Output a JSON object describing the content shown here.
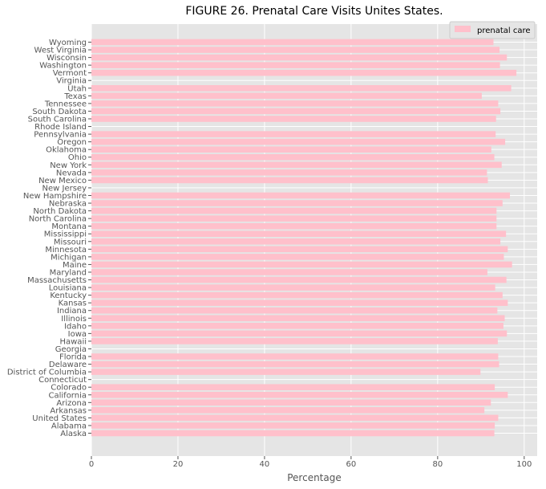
{
  "chart_data": {
    "type": "bar",
    "orientation": "horizontal",
    "title": "FIGURE 26. Prenatal Care Visits Unites States.",
    "xlabel": "Percentage",
    "ylabel": "",
    "xlim": [
      0,
      103
    ],
    "xticks": [
      0,
      20,
      40,
      60,
      80,
      100
    ],
    "grid": true,
    "legend_position": "top-right",
    "bar_color": "#ffc0cb",
    "background_color": "#e5e5e5",
    "grid_color": "#ffffff",
    "categories": [
      "Alaska",
      "Alabama",
      "United States",
      "Arkansas",
      "Arizona",
      "California",
      "Colorado",
      "Connecticut",
      "District of Columbia",
      "Delaware",
      "Florida",
      "Georgia",
      "Hawaii",
      "Iowa",
      "Idaho",
      "Illinois",
      "Indiana",
      "Kansas",
      "Kentucky",
      "Louisiana",
      "Massachusetts",
      "Maryland",
      "Maine",
      "Michigan",
      "Minnesota",
      "Missouri",
      "Mississippi",
      "Montana",
      "North Carolina",
      "North Dakota",
      "Nebraska",
      "New Hampshire",
      "New Jersey",
      "New Mexico",
      "Nevada",
      "New York",
      "Ohio",
      "Oklahoma",
      "Oregon",
      "Pennsylvania",
      "Rhode Island",
      "South Carolina",
      "South Dakota",
      "Tennessee",
      "Texas",
      "Utah",
      "Virginia",
      "Vermont",
      "Washington",
      "Wisconsin",
      "West Virginia",
      "Wyoming"
    ],
    "series": [
      {
        "name": "prenatal care",
        "values": [
          93.1,
          93.2,
          94.0,
          90.8,
          92.3,
          96.2,
          93.2,
          null,
          89.9,
          94.2,
          94.0,
          null,
          93.9,
          96.0,
          95.2,
          95.5,
          93.8,
          96.2,
          95.0,
          93.3,
          95.9,
          91.5,
          97.2,
          95.3,
          96.2,
          94.5,
          95.8,
          93.6,
          93.6,
          93.6,
          95.0,
          96.7,
          null,
          91.6,
          91.4,
          94.8,
          93.1,
          92.4,
          95.6,
          93.4,
          null,
          93.5,
          94.5,
          94.0,
          90.2,
          97.0,
          null,
          98.2,
          94.4,
          96.0,
          94.3,
          92.9
        ]
      }
    ]
  }
}
